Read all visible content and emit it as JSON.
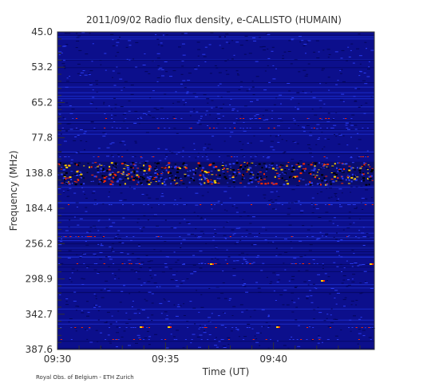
{
  "chart_data": {
    "type": "heatmap",
    "title": "2011/09/02  Radio flux density, e-CALLISTO (HUMAIN)",
    "xlabel": "Time (UT)",
    "ylabel": "Frequency (MHz)",
    "x_ticks": [
      "09:30",
      "09:35",
      "09:40"
    ],
    "y_ticks": [
      "45.0",
      "53.2",
      "65.2",
      "77.8",
      "138.8",
      "184.4",
      "256.2",
      "298.9",
      "342.7",
      "387.6"
    ],
    "xlim": [
      "09:30",
      "09:44:40"
    ],
    "ylim": [
      45.0,
      387.6
    ],
    "colormap": [
      "#00007f",
      "#1c2cd4",
      "#ff2a00",
      "#ffd000"
    ],
    "background_color": "#0c0f8c",
    "bright_band_MHz": [
      125,
      150
    ],
    "credit": "Royal Obs. of Belgium - ETH Zurich"
  }
}
